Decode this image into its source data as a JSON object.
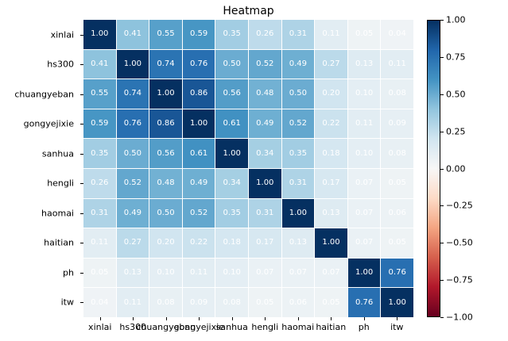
{
  "chart_data": {
    "type": "heatmap",
    "title": "Heatmap",
    "labels": [
      "xinlai",
      "hs300",
      "chuangyeban",
      "gongyejixie",
      "sanhua",
      "hengli",
      "haomai",
      "haitian",
      "ph",
      "itw"
    ],
    "matrix": [
      [
        1.0,
        0.41,
        0.55,
        0.59,
        0.35,
        0.26,
        0.31,
        0.11,
        0.05,
        0.04
      ],
      [
        0.41,
        1.0,
        0.74,
        0.76,
        0.5,
        0.52,
        0.49,
        0.27,
        0.13,
        0.11
      ],
      [
        0.55,
        0.74,
        1.0,
        0.86,
        0.56,
        0.48,
        0.5,
        0.2,
        0.1,
        0.08
      ],
      [
        0.59,
        0.76,
        0.86,
        1.0,
        0.61,
        0.49,
        0.52,
        0.22,
        0.11,
        0.09
      ],
      [
        0.35,
        0.5,
        0.56,
        0.61,
        1.0,
        0.34,
        0.35,
        0.18,
        0.1,
        0.08
      ],
      [
        0.26,
        0.52,
        0.48,
        0.49,
        0.34,
        1.0,
        0.31,
        0.17,
        0.07,
        0.05
      ],
      [
        0.31,
        0.49,
        0.5,
        0.52,
        0.35,
        0.31,
        1.0,
        0.13,
        0.07,
        0.06
      ],
      [
        0.11,
        0.27,
        0.2,
        0.22,
        0.18,
        0.17,
        0.13,
        1.0,
        0.07,
        0.05
      ],
      [
        0.05,
        0.13,
        0.1,
        0.11,
        0.1,
        0.07,
        0.07,
        0.07,
        1.0,
        0.76
      ],
      [
        0.04,
        0.11,
        0.08,
        0.09,
        0.08,
        0.05,
        0.06,
        0.05,
        0.76,
        1.0
      ]
    ],
    "value_decimals": 2,
    "vmin": -1.0,
    "vmax": 1.0,
    "colormap": "RdBu",
    "colormap_anchors": [
      "#67001f",
      "#b2182b",
      "#d6604d",
      "#f4a582",
      "#fddbc7",
      "#f7f7f7",
      "#d1e5f0",
      "#92c5de",
      "#4393c3",
      "#2166ac",
      "#053061"
    ],
    "colorbar_ticks": [
      "1.00",
      "0.75",
      "0.50",
      "0.25",
      "0.00",
      "−0.25",
      "−0.50",
      "−0.75",
      "−1.00"
    ],
    "cell_text_color": "#ffffff",
    "legend_position": "right-colorbar",
    "grid_lines": true
  }
}
